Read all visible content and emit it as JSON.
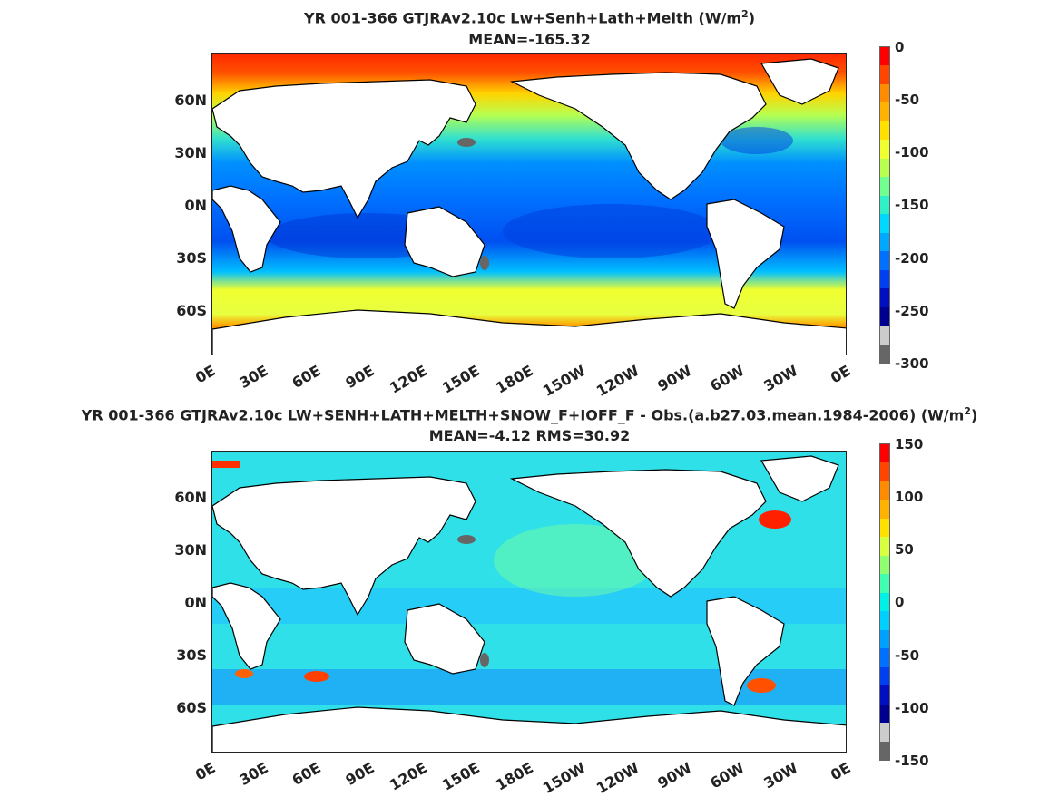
{
  "panels": [
    {
      "title_text": "YR 001-366 GTJRAv2.10c Lw+Senh+Lath+Melth (W/m",
      "title_sup": "2",
      "title_tail": ")",
      "subtitle": "MEAN=-165.32",
      "colorbar_ticks": [
        "0",
        "-50",
        "-100",
        "-150",
        "-200",
        "-250",
        "-300"
      ]
    },
    {
      "title_text": "YR 001-366 GTJRAv2.10c LW+SENH+LATH+MELTH+SNOW_F+IOFF_F - Obs.(a.b27.03.mean.1984-2006) (W/m",
      "title_sup": "2",
      "title_tail": ")",
      "subtitle": "MEAN=-4.12 RMS=30.92",
      "colorbar_ticks": [
        "150",
        "100",
        "50",
        "0",
        "-50",
        "-100",
        "-150"
      ]
    }
  ],
  "lat_ticks": [
    "60N",
    "30N",
    "0N",
    "30S",
    "60S"
  ],
  "lon_ticks": [
    "0E",
    "30E",
    "60E",
    "90E",
    "120E",
    "150E",
    "180E",
    "150W",
    "120W",
    "90W",
    "60W",
    "30W",
    "0E"
  ],
  "colors": {
    "land": "#ffffff",
    "coast": "#000000",
    "inland_sea": "#666666",
    "cbar_top_panel": [
      "#ff0000",
      "#ff4500",
      "#ff8c00",
      "#ffb300",
      "#ffe000",
      "#f0ff30",
      "#b8ff50",
      "#70ff90",
      "#30f0c8",
      "#00d8ff",
      "#00a8ff",
      "#0070ff",
      "#0040f0",
      "#0010c0",
      "#000090",
      "#cccccc",
      "#666666"
    ],
    "cbar_bottom_panel": [
      "#ff0000",
      "#ff4500",
      "#ff8c00",
      "#ffb300",
      "#ffe000",
      "#d8ff40",
      "#90ff70",
      "#40ffb0",
      "#00f0e8",
      "#00d0ff",
      "#00a0ff",
      "#0070ff",
      "#0040f0",
      "#0010c0",
      "#000090",
      "#cccccc",
      "#666666"
    ]
  }
}
